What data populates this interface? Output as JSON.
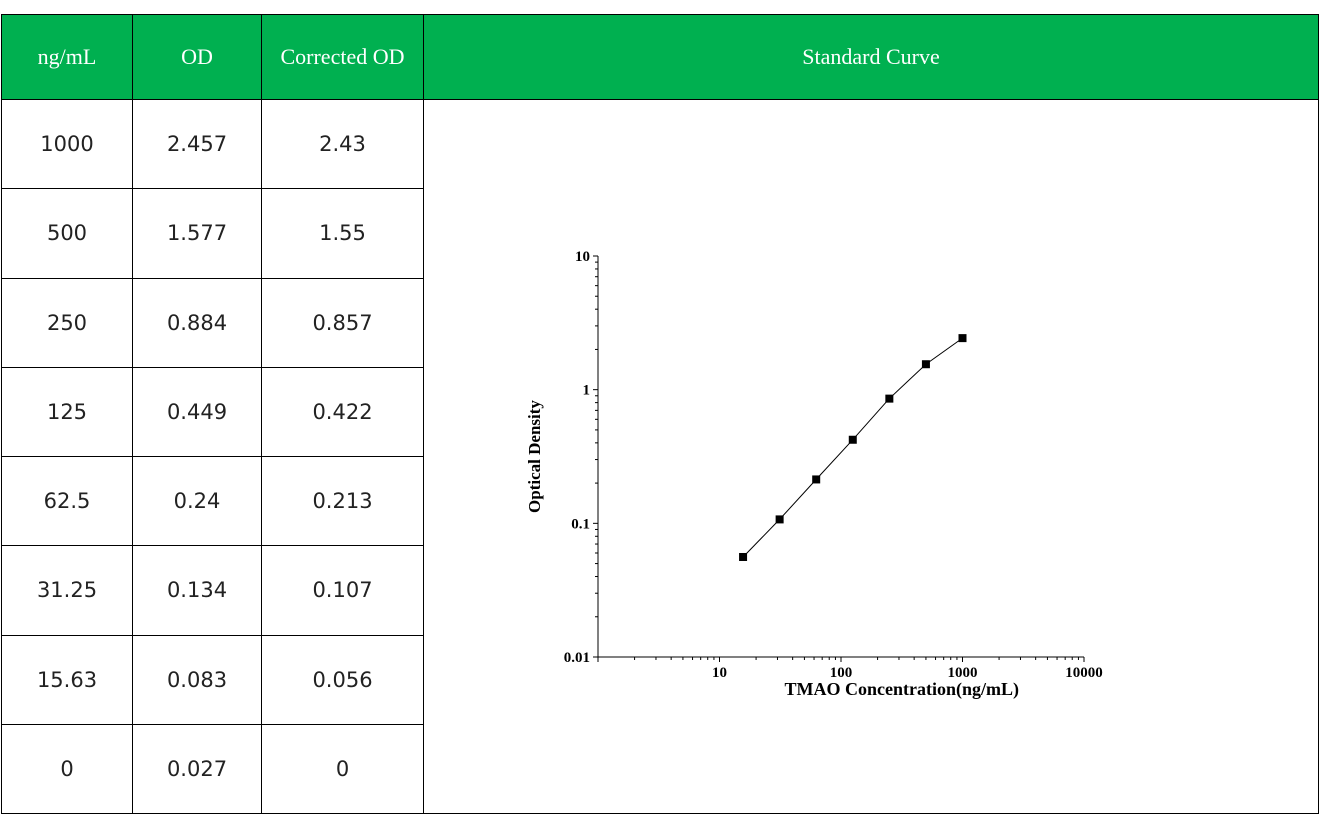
{
  "table": {
    "headers": [
      "ng/mL",
      "OD",
      "Corrected OD",
      "Standard Curve"
    ],
    "rows": [
      [
        "1000",
        "2.457",
        "2.43"
      ],
      [
        "500",
        "1.577",
        "1.55"
      ],
      [
        "250",
        "0.884",
        "0.857"
      ],
      [
        "125",
        "0.449",
        "0.422"
      ],
      [
        "62.5",
        "0.24",
        "0.213"
      ],
      [
        "31.25",
        "0.134",
        "0.107"
      ],
      [
        "15.63",
        "0.083",
        "0.056"
      ],
      [
        "0",
        "0.027",
        "0"
      ]
    ]
  },
  "colors": {
    "header_bg": "#00b050",
    "header_text": "#ffffff"
  },
  "chart_data": {
    "type": "line",
    "xlabel": "TMAO Concentration(ng/mL)",
    "ylabel": "Optical Density",
    "x_scale": "log",
    "y_scale": "log",
    "xlim": [
      1,
      10000
    ],
    "ylim": [
      0.01,
      10
    ],
    "x_ticks": [
      "10",
      "100",
      "1000",
      "10000"
    ],
    "y_ticks": [
      "0.01",
      "0.1",
      "1",
      "10"
    ],
    "grid": false,
    "markers": "square",
    "x": [
      15.63,
      31.25,
      62.5,
      125,
      250,
      500,
      1000
    ],
    "y": [
      0.056,
      0.107,
      0.213,
      0.422,
      0.857,
      1.55,
      2.43
    ]
  }
}
